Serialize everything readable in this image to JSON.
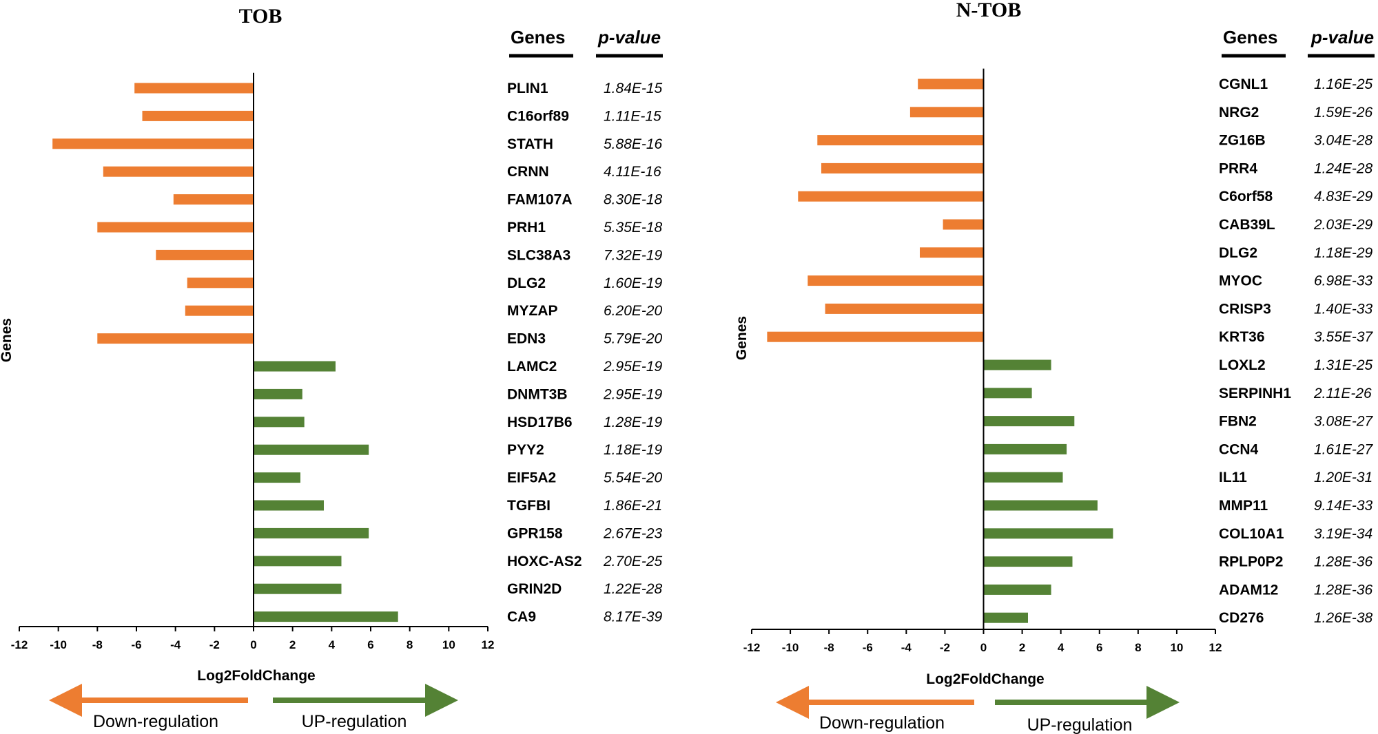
{
  "colors": {
    "down": "#ED7D31",
    "up": "#548235",
    "axis": "#000000"
  },
  "chart_data": [
    {
      "type": "bar",
      "orientation": "horizontal",
      "title": "TOB",
      "xlabel": "Log2FoldChange",
      "ylabel": "Genes",
      "xlim": [
        -12,
        12
      ],
      "xticks": [
        -12,
        -10,
        -8,
        -6,
        -4,
        -2,
        0,
        2,
        4,
        6,
        8,
        10,
        12
      ],
      "table_headers": [
        "Genes",
        "p-value"
      ],
      "categories": [
        "PLIN1",
        "C16orf89",
        "STATH",
        "CRNN",
        "FAM107A",
        "PRH1",
        "SLC38A3",
        "DLG2",
        "MYZAP",
        "EDN3",
        "LAMC2",
        "DNMT3B",
        "HSD17B6",
        "PYY2",
        "EIF5A2",
        "TGFBI",
        "GPR158",
        "HOXC-AS2",
        "GRIN2D",
        "CA9"
      ],
      "values": [
        -6.1,
        -5.7,
        -10.3,
        -7.7,
        -4.1,
        -8.0,
        -5.0,
        -3.4,
        -3.5,
        -8.0,
        4.2,
        2.5,
        2.6,
        5.9,
        2.4,
        3.6,
        5.9,
        4.5,
        4.5,
        7.4
      ],
      "p_values": [
        "1.84E-15",
        "1.11E-15",
        "5.88E-16",
        "4.11E-16",
        "8.30E-18",
        "5.35E-18",
        "7.32E-19",
        "1.60E-19",
        "6.20E-20",
        "5.79E-20",
        "2.95E-19",
        "2.95E-19",
        "1.28E-19",
        "1.18E-19",
        "5.54E-20",
        "1.86E-21",
        "2.67E-23",
        "2.70E-25",
        "1.22E-28",
        "8.17E-39"
      ],
      "legend": {
        "down": "Down-regulation",
        "up": "UP-regulation"
      },
      "grid": false
    },
    {
      "type": "bar",
      "orientation": "horizontal",
      "title": "N-TOB",
      "xlabel": "Log2FoldChange",
      "ylabel": "Genes",
      "xlim": [
        -12,
        12
      ],
      "xticks": [
        -12,
        -10,
        -8,
        -6,
        -4,
        -2,
        0,
        2,
        4,
        6,
        8,
        10,
        12
      ],
      "table_headers": [
        "Genes",
        "p-value"
      ],
      "categories": [
        "CGNL1",
        "NRG2",
        "ZG16B",
        "PRR4",
        "C6orf58",
        "CAB39L",
        "DLG2",
        "MYOC",
        "CRISP3",
        "KRT36",
        "LOXL2",
        "SERPINH1",
        "FBN2",
        "CCN4",
        "IL11",
        "MMP11",
        "COL10A1",
        "RPLP0P2",
        "ADAM12",
        "CD276"
      ],
      "values": [
        -3.4,
        -3.8,
        -8.6,
        -8.4,
        -9.6,
        -2.1,
        -3.3,
        -9.1,
        -8.2,
        -11.2,
        3.5,
        2.5,
        4.7,
        4.3,
        4.1,
        5.9,
        6.7,
        4.6,
        3.5,
        2.3
      ],
      "p_values": [
        "1.16E-25",
        "1.59E-26",
        "3.04E-28",
        "1.24E-28",
        "4.83E-29",
        "2.03E-29",
        "1.18E-29",
        "6.98E-33",
        "1.40E-33",
        "3.55E-37",
        "1.31E-25",
        "2.11E-26",
        "3.08E-27",
        "1.61E-27",
        "1.20E-31",
        "9.14E-33",
        "3.19E-34",
        "1.28E-36",
        "1.28E-36",
        "1.26E-38"
      ],
      "legend": {
        "down": "Down-regulation",
        "up": "UP-regulation"
      },
      "grid": false
    }
  ]
}
